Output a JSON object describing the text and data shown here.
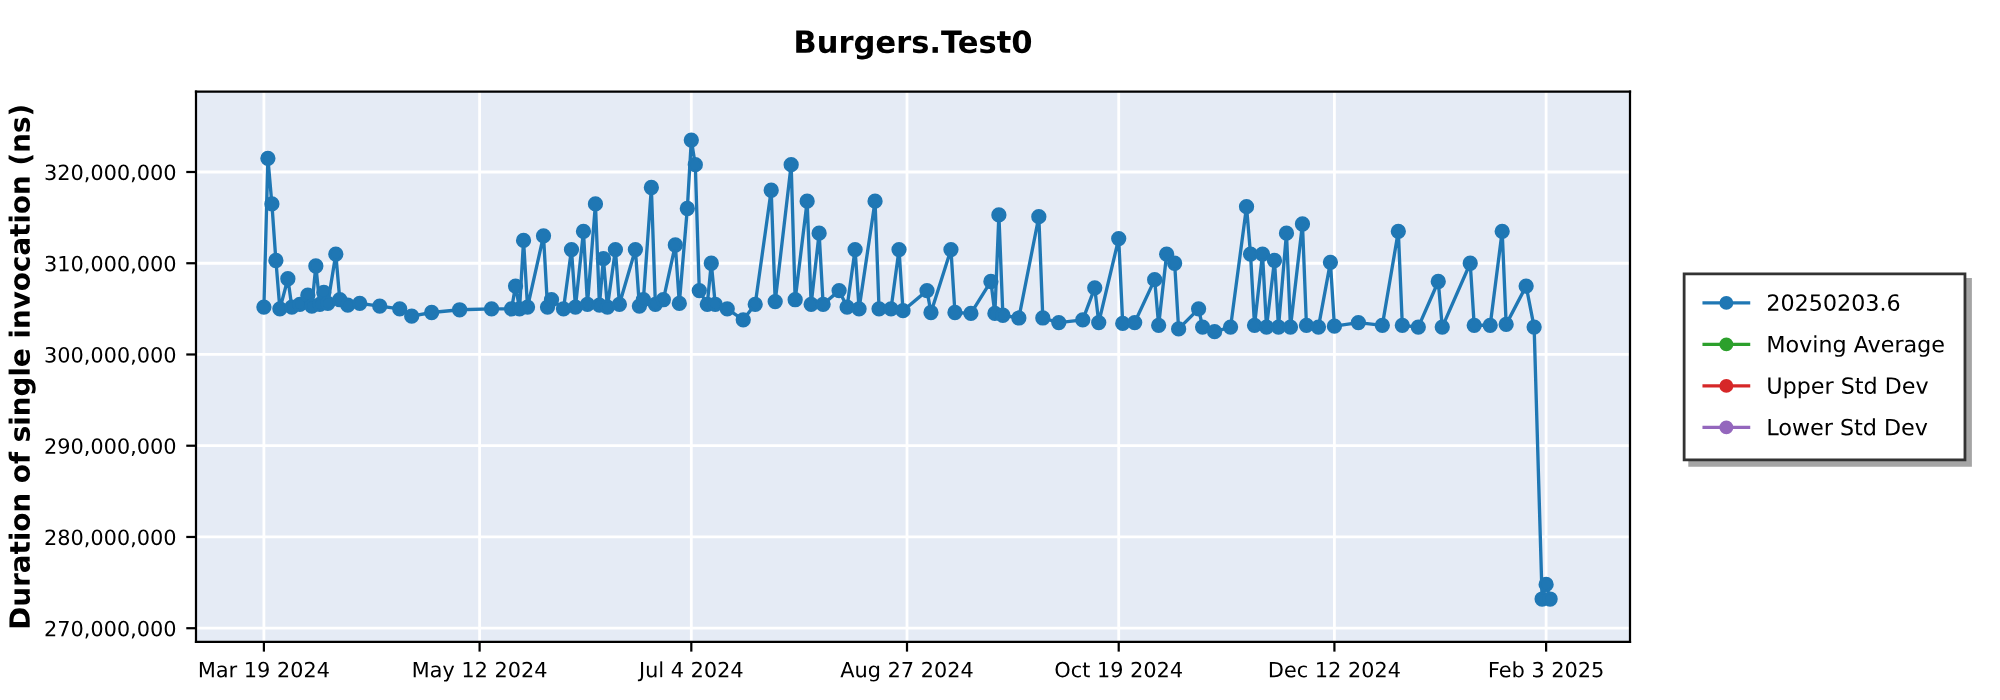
{
  "chart_data": {
    "type": "line",
    "title": "Burgers.Test0",
    "ylabel": "Duration of single invocation (ns)",
    "xlim": [
      "2024-03-02",
      "2025-02-24"
    ],
    "ylim": [
      268500000,
      328800000
    ],
    "xticks": [
      {
        "value": "2024-03-19",
        "label": "Mar 19 2024"
      },
      {
        "value": "2024-05-12",
        "label": "May 12 2024"
      },
      {
        "value": "2024-07-04",
        "label": "Jul 4 2024"
      },
      {
        "value": "2024-08-27",
        "label": "Aug 27 2024"
      },
      {
        "value": "2024-10-19",
        "label": "Oct 19 2024"
      },
      {
        "value": "2024-12-12",
        "label": "Dec 12 2024"
      },
      {
        "value": "2025-02-03",
        "label": "Feb 3 2025"
      }
    ],
    "yticks": [
      {
        "value": 270000000,
        "label": "270,000,000"
      },
      {
        "value": 280000000,
        "label": "280,000,000"
      },
      {
        "value": 290000000,
        "label": "290,000,000"
      },
      {
        "value": 300000000,
        "label": "300,000,000"
      },
      {
        "value": 310000000,
        "label": "310,000,000"
      },
      {
        "value": 320000000,
        "label": "320,000,000"
      }
    ],
    "grid": true,
    "legend": "right",
    "marker": "circle",
    "line_style": "solid",
    "series": [
      {
        "name": "20250203.6",
        "color": "#1f77b4",
        "x": [
          "2024-03-19",
          "2024-03-20",
          "2024-03-21",
          "2024-03-22",
          "2024-03-23",
          "2024-03-25",
          "2024-03-26",
          "2024-03-28",
          "2024-03-30",
          "2024-03-31",
          "2024-04-01",
          "2024-04-02",
          "2024-04-03",
          "2024-04-04",
          "2024-04-06",
          "2024-04-07",
          "2024-04-09",
          "2024-04-12",
          "2024-04-17",
          "2024-04-22",
          "2024-04-25",
          "2024-04-30",
          "2024-05-07",
          "2024-05-15",
          "2024-05-20",
          "2024-05-21",
          "2024-05-22",
          "2024-05-23",
          "2024-05-24",
          "2024-05-28",
          "2024-05-29",
          "2024-05-30",
          "2024-06-02",
          "2024-06-04",
          "2024-06-05",
          "2024-06-07",
          "2024-06-08",
          "2024-06-10",
          "2024-06-11",
          "2024-06-12",
          "2024-06-13",
          "2024-06-15",
          "2024-06-16",
          "2024-06-20",
          "2024-06-21",
          "2024-06-22",
          "2024-06-24",
          "2024-06-25",
          "2024-06-27",
          "2024-06-30",
          "2024-07-01",
          "2024-07-03",
          "2024-07-04",
          "2024-07-05",
          "2024-07-06",
          "2024-07-08",
          "2024-07-09",
          "2024-07-10",
          "2024-07-13",
          "2024-07-17",
          "2024-07-20",
          "2024-07-24",
          "2024-07-25",
          "2024-07-29",
          "2024-07-30",
          "2024-08-02",
          "2024-08-03",
          "2024-08-05",
          "2024-08-06",
          "2024-08-10",
          "2024-08-12",
          "2024-08-14",
          "2024-08-15",
          "2024-08-19",
          "2024-08-20",
          "2024-08-23",
          "2024-08-25",
          "2024-08-26",
          "2024-09-01",
          "2024-09-02",
          "2024-09-07",
          "2024-09-08",
          "2024-09-12",
          "2024-09-17",
          "2024-09-18",
          "2024-09-19",
          "2024-09-20",
          "2024-09-24",
          "2024-09-29",
          "2024-09-30",
          "2024-10-04",
          "2024-10-10",
          "2024-10-13",
          "2024-10-14",
          "2024-10-19",
          "2024-10-20",
          "2024-10-23",
          "2024-10-28",
          "2024-10-29",
          "2024-10-31",
          "2024-11-02",
          "2024-11-03",
          "2024-11-08",
          "2024-11-09",
          "2024-11-12",
          "2024-11-16",
          "2024-11-20",
          "2024-11-21",
          "2024-11-22",
          "2024-11-24",
          "2024-11-25",
          "2024-11-27",
          "2024-11-28",
          "2024-11-30",
          "2024-12-01",
          "2024-12-04",
          "2024-12-05",
          "2024-12-08",
          "2024-12-11",
          "2024-12-12",
          "2024-12-18",
          "2024-12-24",
          "2024-12-28",
          "2024-12-29",
          "2025-01-02",
          "2025-01-07",
          "2025-01-08",
          "2025-01-15",
          "2025-01-16",
          "2025-01-20",
          "2025-01-23",
          "2025-01-24",
          "2025-01-29",
          "2025-01-31",
          "2025-02-02",
          "2025-02-03",
          "2025-02-04"
        ],
        "values": [
          305200000,
          321500000,
          316500000,
          310300000,
          305000000,
          308300000,
          305200000,
          305500000,
          306500000,
          305300000,
          309700000,
          305500000,
          306800000,
          305600000,
          311000000,
          306000000,
          305400000,
          305600000,
          305300000,
          305000000,
          304200000,
          304600000,
          304900000,
          305000000,
          305000000,
          307500000,
          305000000,
          312500000,
          305200000,
          313000000,
          305200000,
          306000000,
          305000000,
          311500000,
          305200000,
          313500000,
          305500000,
          316500000,
          305400000,
          310500000,
          305200000,
          311500000,
          305500000,
          311500000,
          305300000,
          306000000,
          318300000,
          305500000,
          306000000,
          312000000,
          305600000,
          316000000,
          323500000,
          320800000,
          307000000,
          305500000,
          310000000,
          305500000,
          305000000,
          303800000,
          305500000,
          318000000,
          305800000,
          320800000,
          306000000,
          316800000,
          305500000,
          313300000,
          305500000,
          307000000,
          305200000,
          311500000,
          305000000,
          316800000,
          305000000,
          305000000,
          311500000,
          304800000,
          307000000,
          304600000,
          311500000,
          304600000,
          304500000,
          308000000,
          304500000,
          315300000,
          304300000,
          304000000,
          315100000,
          304000000,
          303500000,
          303800000,
          307300000,
          303500000,
          312700000,
          303400000,
          303500000,
          308200000,
          303200000,
          311000000,
          310000000,
          302800000,
          305000000,
          303000000,
          302500000,
          303000000,
          316200000,
          311000000,
          303200000,
          311000000,
          303000000,
          310300000,
          303000000,
          313300000,
          303000000,
          314300000,
          303200000,
          303000000,
          310100000,
          303100000,
          303500000,
          303200000,
          313500000,
          303200000,
          303000000,
          308000000,
          303000000,
          310000000,
          303200000,
          303200000,
          313500000,
          303300000,
          307500000,
          303000000,
          273200000,
          274800000,
          273200000
        ]
      },
      {
        "name": "Moving Average",
        "color": "#2ca02c"
      },
      {
        "name": "Upper Std Dev",
        "color": "#d62728"
      },
      {
        "name": "Lower Std Dev",
        "color": "#9467bd"
      }
    ]
  }
}
